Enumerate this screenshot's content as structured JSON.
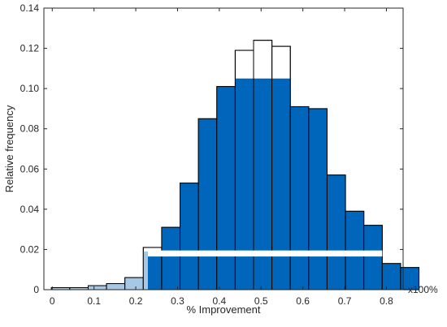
{
  "chart_data": {
    "type": "bar",
    "subtype": "histogram",
    "title": "",
    "xlabel": "% Improvement",
    "ylabel": "Relative frequency",
    "x_multiplier": "x100%",
    "xlim": [
      -0.02,
      0.84
    ],
    "ylim": [
      0,
      0.14
    ],
    "xticks": [
      0,
      0.1,
      0.2,
      0.3,
      0.4,
      0.5,
      0.6,
      0.7,
      0.8
    ],
    "xtick_labels": [
      "0",
      "0.1",
      "0.2",
      "0.3",
      "0.4",
      "0.5",
      "0.6",
      "0.7",
      "0.8"
    ],
    "yticks": [
      0,
      0.02,
      0.04,
      0.06,
      0.08,
      0.1,
      0.12,
      0.14
    ],
    "ytick_labels": [
      "0",
      "0.02",
      "0.04",
      "0.06",
      "0.08",
      "0.10",
      "0.12",
      "0.14"
    ],
    "grid": false,
    "bin_width": 0.044,
    "bins": [
      {
        "x0": -0.002,
        "total": 0.001,
        "filled": 0.001,
        "shade": "light"
      },
      {
        "x0": 0.042,
        "total": 0.001,
        "filled": 0.001,
        "shade": "light"
      },
      {
        "x0": 0.086,
        "total": 0.002,
        "filled": 0.002,
        "shade": "light"
      },
      {
        "x0": 0.13,
        "total": 0.003,
        "filled": 0.003,
        "shade": "light"
      },
      {
        "x0": 0.174,
        "total": 0.006,
        "filled": 0.006,
        "shade": "light"
      },
      {
        "x0": 0.218,
        "total": 0.021,
        "filled": 0.019,
        "shade": "split"
      },
      {
        "x0": 0.262,
        "total": 0.031,
        "filled": 0.031,
        "shade": "dark"
      },
      {
        "x0": 0.306,
        "total": 0.053,
        "filled": 0.053,
        "shade": "dark"
      },
      {
        "x0": 0.35,
        "total": 0.085,
        "filled": 0.085,
        "shade": "dark"
      },
      {
        "x0": 0.394,
        "total": 0.101,
        "filled": 0.101,
        "shade": "dark"
      },
      {
        "x0": 0.438,
        "total": 0.119,
        "filled": 0.105,
        "shade": "dark"
      },
      {
        "x0": 0.482,
        "total": 0.124,
        "filled": 0.105,
        "shade": "dark"
      },
      {
        "x0": 0.526,
        "total": 0.121,
        "filled": 0.105,
        "shade": "dark"
      },
      {
        "x0": 0.57,
        "total": 0.091,
        "filled": 0.091,
        "shade": "dark"
      },
      {
        "x0": 0.614,
        "total": 0.09,
        "filled": 0.09,
        "shade": "dark"
      },
      {
        "x0": 0.658,
        "total": 0.057,
        "filled": 0.057,
        "shade": "dark"
      },
      {
        "x0": 0.702,
        "total": 0.039,
        "filled": 0.039,
        "shade": "dark"
      },
      {
        "x0": 0.746,
        "total": 0.032,
        "filled": 0.032,
        "shade": "dark"
      },
      {
        "x0": 0.79,
        "total": 0.013,
        "filled": 0.013,
        "shade": "dark"
      },
      {
        "x0": 0.834,
        "total": 0.011,
        "filled": 0.011,
        "shade": "dark"
      }
    ],
    "white_band": {
      "y0": 0.0165,
      "y1": 0.0195
    },
    "colors": {
      "dark": "#0066bb",
      "light": "#a6c8e4",
      "edge": "#000000",
      "band": "#ffffff"
    }
  }
}
